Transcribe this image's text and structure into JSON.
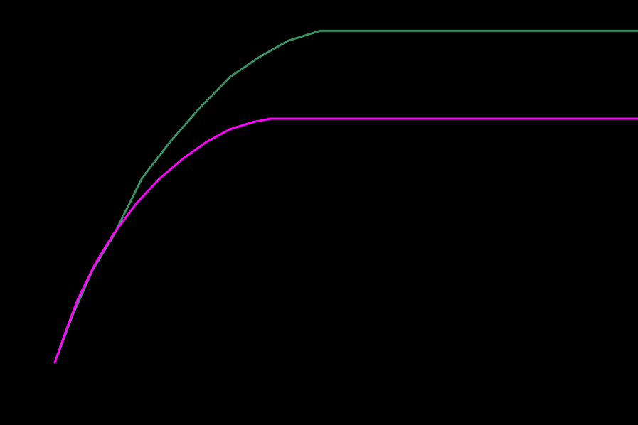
{
  "chart_data": {
    "type": "line",
    "xlim": [
      0,
      100
    ],
    "ylim": [
      0,
      105
    ],
    "series": [
      {
        "color": "#3a8f64",
        "x": [
          0,
          3,
          6.5,
          10,
          15,
          20,
          25,
          30,
          35,
          40,
          45.5,
          100
        ],
        "values": [
          0,
          14,
          27.9,
          38,
          55.7,
          67,
          77,
          86,
          92,
          97,
          100,
          100
        ]
      },
      {
        "color": "#ff00ff",
        "x": [
          0,
          2,
          4,
          7,
          10,
          14,
          18,
          22,
          26,
          30,
          34,
          37,
          100
        ],
        "values": [
          0,
          10,
          19.3,
          30,
          38.6,
          48,
          55.5,
          61.5,
          66.5,
          70.3,
          72.5,
          73.5,
          73.5
        ]
      }
    ]
  }
}
